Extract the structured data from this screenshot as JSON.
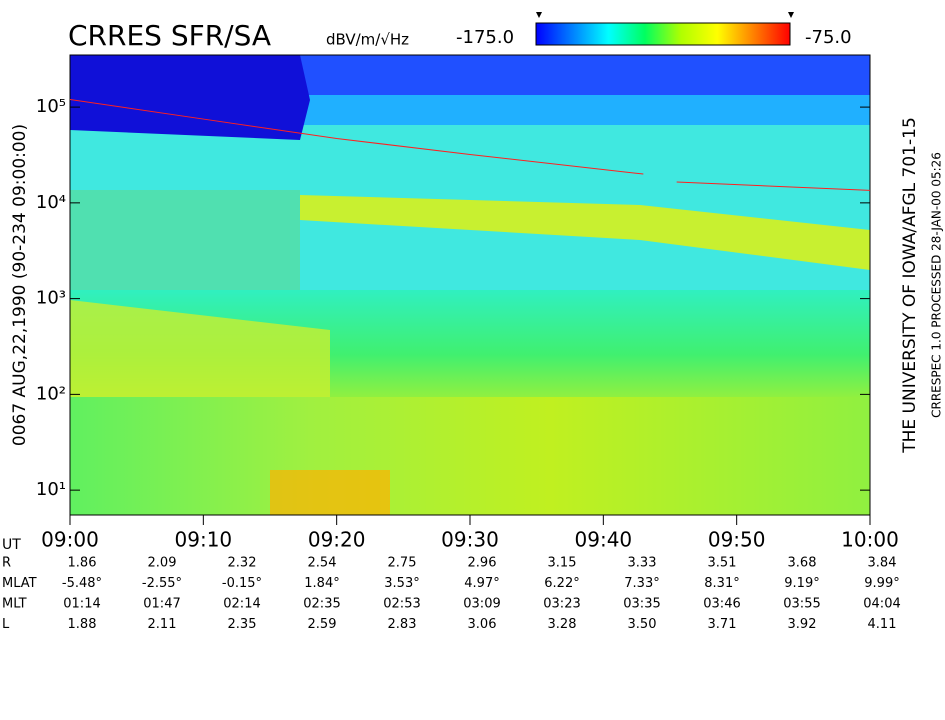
{
  "chart_data": {
    "type": "spectrogram",
    "title": "CRRES SFR/SA",
    "colorbar": {
      "label": "dBV/m/√Hz",
      "min": {
        "value": -175,
        "label": "-175.0"
      },
      "max": {
        "value": -75,
        "label": "-75.0"
      },
      "colormap": [
        "#0000ff",
        "#0080ff",
        "#00ffff",
        "#00ff60",
        "#b0ff00",
        "#ffff00",
        "#ff8000",
        "#ff0000"
      ]
    },
    "ylabel": "0067   AUG,22,1990   (90-234 09:00:00)",
    "right_labels": [
      "THE UNIVERSITY OF IOWA/AFGL  701-15",
      "CRRESPEC 1.0   PROCESSED 28-JAN-00  05:26"
    ],
    "log_y": true,
    "ylim": [
      5.5,
      350000
    ],
    "yticks": [
      {
        "value": 10,
        "label": "10¹"
      },
      {
        "value": 100,
        "label": "10²"
      },
      {
        "value": 1000,
        "label": "10³"
      },
      {
        "value": 10000,
        "label": "10⁴"
      },
      {
        "value": 100000,
        "label": "10⁵"
      }
    ],
    "xlim": [
      0,
      60
    ],
    "xticks": [
      {
        "value": 0,
        "label": "09:00"
      },
      {
        "value": 10,
        "label": "09:10"
      },
      {
        "value": 20,
        "label": "09:20"
      },
      {
        "value": 30,
        "label": "09:30"
      },
      {
        "value": 40,
        "label": "09:40"
      },
      {
        "value": 50,
        "label": "09:50"
      },
      {
        "value": 60,
        "label": "10:00"
      }
    ],
    "x_axis_name": "UT",
    "series": [
      {
        "color": "#ff2020",
        "x": [
          0,
          10,
          20,
          30,
          43,
          44,
          45.5,
          60
        ],
        "values": [
          120000,
          75000,
          47000,
          32000,
          20000,
          null,
          16500,
          13500
        ]
      }
    ],
    "ephemeris": [
      {
        "label": "R",
        "values": [
          "1.86",
          "2.09",
          "2.32",
          "2.54",
          "2.75",
          "2.96",
          "3.15",
          "3.33",
          "3.51",
          "3.68",
          "3.84"
        ]
      },
      {
        "label": "MLAT",
        "values": [
          "-5.48°",
          "-2.55°",
          "-0.15°",
          "1.84°",
          "3.53°",
          "4.97°",
          "6.22°",
          "7.33°",
          "8.31°",
          "9.19°",
          "9.99°"
        ]
      },
      {
        "label": "MLT",
        "values": [
          "01:14",
          "01:47",
          "02:14",
          "02:35",
          "02:53",
          "03:09",
          "03:23",
          "03:35",
          "03:46",
          "03:55",
          "04:04"
        ]
      },
      {
        "label": "L",
        "values": [
          "1.88",
          "2.11",
          "2.35",
          "2.59",
          "2.83",
          "3.06",
          "3.28",
          "3.50",
          "3.71",
          "3.92",
          "4.11"
        ]
      }
    ]
  }
}
